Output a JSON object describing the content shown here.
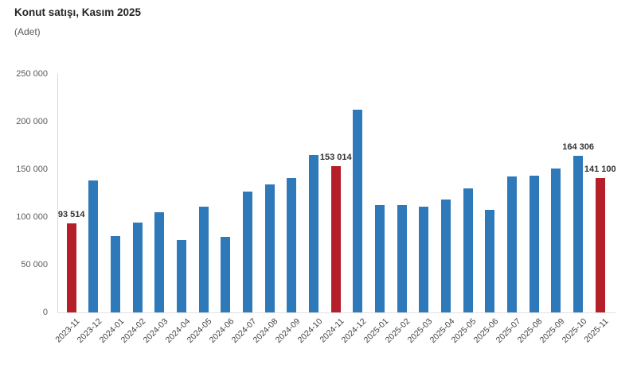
{
  "title": "Konut satışı, Kasım 2025",
  "subtitle": "(Adet)",
  "colors": {
    "bar_default": "#2E79B9",
    "bar_highlight": "#B41F29",
    "title_text": "#262626",
    "subtitle_text": "#595959",
    "y_tick_text": "#595959",
    "x_tick_text": "#404040",
    "data_label_text": "#333333",
    "axis_line": "#D9D9D9"
  },
  "chart_data": {
    "type": "bar",
    "title": "Konut satışı, Kasım 2025",
    "ylabel": "(Adet)",
    "xlabel": "",
    "ylim": [
      0,
      250000
    ],
    "grid": false,
    "legend": false,
    "y_tick_labels_top_to_bottom": [
      "250 000",
      "200 000",
      "150 000",
      "100 000",
      "50 000",
      "0"
    ],
    "categories": [
      "2023-11",
      "2023-12",
      "2024-01",
      "2024-02",
      "2024-03",
      "2024-04",
      "2024-05",
      "2024-06",
      "2024-07",
      "2024-08",
      "2024-09",
      "2024-10",
      "2024-11",
      "2024-12",
      "2025-01",
      "2025-02",
      "2025-03",
      "2025-04",
      "2025-05",
      "2025-06",
      "2025-07",
      "2025-08",
      "2025-09",
      "2025-10",
      "2025-11"
    ],
    "values": [
      93514,
      138577,
      80308,
      93902,
      105394,
      75569,
      110588,
      79313,
      127088,
      134155,
      140919,
      165138,
      153014,
      212637,
      112173,
      112818,
      110795,
      118359,
      130025,
      107723,
      142858,
      143319,
      150657,
      164306,
      141100
    ],
    "highlighted_indices": [
      0,
      12,
      24
    ],
    "data_labels": [
      {
        "index": 0,
        "text": "93 514"
      },
      {
        "index": 12,
        "text": "153 014"
      },
      {
        "index": 23,
        "text": "164 306"
      },
      {
        "index": 24,
        "text": "141 100"
      }
    ]
  }
}
